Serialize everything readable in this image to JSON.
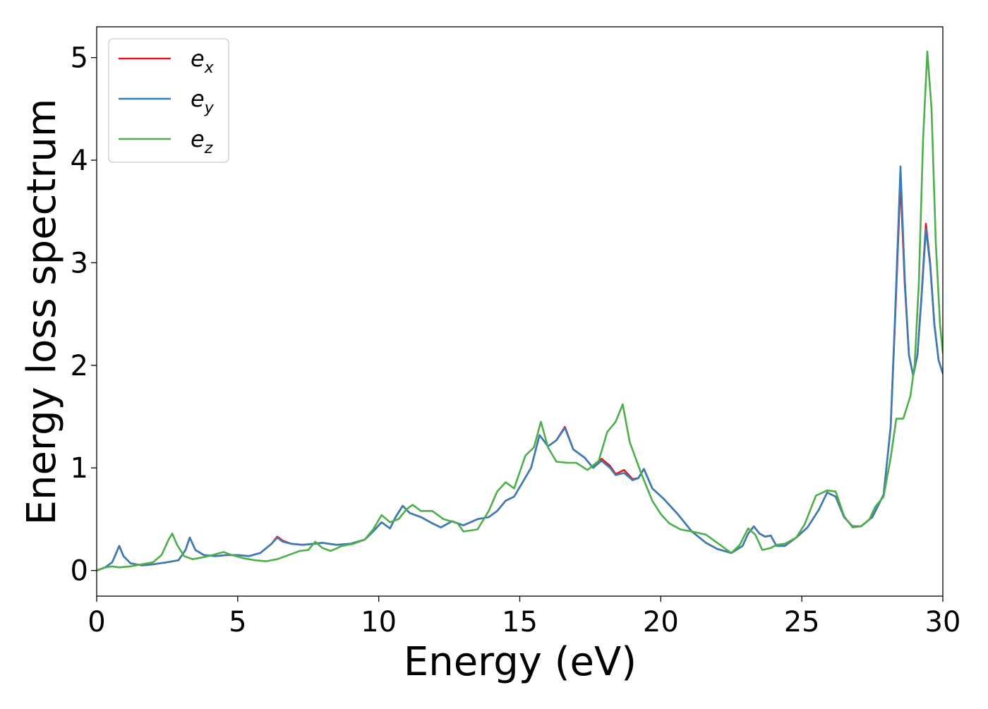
{
  "chart_data": {
    "type": "line",
    "title": "",
    "xlabel": "Energy (eV)",
    "ylabel": "Energy loss spectrum",
    "xlim": [
      0,
      30
    ],
    "ylim": [
      -0.25,
      5.3
    ],
    "xticks": [
      0,
      5,
      10,
      15,
      20,
      25,
      30
    ],
    "yticks": [
      0,
      1,
      2,
      3,
      4,
      5
    ],
    "grid": false,
    "legend": {
      "placement": "top-left",
      "entries": [
        {
          "base": "e",
          "sub": "x"
        },
        {
          "base": "e",
          "sub": "y"
        },
        {
          "base": "e",
          "sub": "z"
        }
      ]
    },
    "series": [
      {
        "name": "e_x",
        "color": "#e41a1c",
        "points": [
          [
            0,
            0.0
          ],
          [
            0.3,
            0.03
          ],
          [
            0.55,
            0.08
          ],
          [
            0.8,
            0.24
          ],
          [
            0.95,
            0.14
          ],
          [
            1.2,
            0.07
          ],
          [
            1.6,
            0.05
          ],
          [
            2.0,
            0.06
          ],
          [
            2.5,
            0.08
          ],
          [
            2.9,
            0.1
          ],
          [
            3.15,
            0.2
          ],
          [
            3.3,
            0.32
          ],
          [
            3.5,
            0.2
          ],
          [
            3.8,
            0.15
          ],
          [
            4.2,
            0.14
          ],
          [
            4.6,
            0.15
          ],
          [
            5.0,
            0.15
          ],
          [
            5.4,
            0.14
          ],
          [
            5.8,
            0.17
          ],
          [
            6.2,
            0.26
          ],
          [
            6.4,
            0.33
          ],
          [
            6.6,
            0.29
          ],
          [
            6.9,
            0.26
          ],
          [
            7.3,
            0.25
          ],
          [
            7.7,
            0.26
          ],
          [
            8.0,
            0.27
          ],
          [
            8.5,
            0.25
          ],
          [
            9.0,
            0.26
          ],
          [
            9.5,
            0.3
          ],
          [
            9.8,
            0.38
          ],
          [
            10.1,
            0.47
          ],
          [
            10.4,
            0.41
          ],
          [
            10.6,
            0.52
          ],
          [
            10.85,
            0.63
          ],
          [
            11.1,
            0.56
          ],
          [
            11.5,
            0.52
          ],
          [
            11.9,
            0.46
          ],
          [
            12.2,
            0.42
          ],
          [
            12.6,
            0.48
          ],
          [
            13.0,
            0.44
          ],
          [
            13.5,
            0.5
          ],
          [
            13.9,
            0.52
          ],
          [
            14.2,
            0.58
          ],
          [
            14.5,
            0.68
          ],
          [
            14.8,
            0.72
          ],
          [
            15.1,
            0.86
          ],
          [
            15.4,
            1.0
          ],
          [
            15.7,
            1.32
          ],
          [
            16.0,
            1.21
          ],
          [
            16.3,
            1.27
          ],
          [
            16.6,
            1.4
          ],
          [
            16.9,
            1.18
          ],
          [
            17.3,
            1.1
          ],
          [
            17.6,
            1.0
          ],
          [
            17.9,
            1.09
          ],
          [
            18.2,
            1.02
          ],
          [
            18.4,
            0.94
          ],
          [
            18.7,
            0.98
          ],
          [
            19.0,
            0.89
          ],
          [
            19.2,
            0.9
          ],
          [
            19.4,
            0.99
          ],
          [
            19.7,
            0.8
          ],
          [
            20.1,
            0.7
          ],
          [
            20.6,
            0.55
          ],
          [
            21.1,
            0.38
          ],
          [
            21.6,
            0.27
          ],
          [
            22.0,
            0.21
          ],
          [
            22.5,
            0.17
          ],
          [
            22.9,
            0.24
          ],
          [
            23.1,
            0.36
          ],
          [
            23.3,
            0.43
          ],
          [
            23.5,
            0.36
          ],
          [
            23.7,
            0.33
          ],
          [
            23.9,
            0.34
          ],
          [
            24.1,
            0.24
          ],
          [
            24.4,
            0.24
          ],
          [
            24.8,
            0.32
          ],
          [
            25.2,
            0.42
          ],
          [
            25.6,
            0.59
          ],
          [
            25.9,
            0.76
          ],
          [
            26.2,
            0.72
          ],
          [
            26.5,
            0.52
          ],
          [
            26.8,
            0.43
          ],
          [
            27.1,
            0.43
          ],
          [
            27.5,
            0.52
          ],
          [
            27.9,
            0.74
          ],
          [
            28.15,
            1.4
          ],
          [
            28.3,
            2.4
          ],
          [
            28.5,
            3.8
          ],
          [
            28.65,
            2.8
          ],
          [
            28.8,
            2.1
          ],
          [
            28.95,
            1.9
          ],
          [
            29.1,
            2.1
          ],
          [
            29.25,
            2.7
          ],
          [
            29.4,
            3.38
          ],
          [
            29.55,
            3.0
          ],
          [
            29.7,
            2.4
          ],
          [
            29.85,
            2.05
          ],
          [
            30.0,
            1.92
          ]
        ]
      },
      {
        "name": "e_y",
        "color": "#377eb8",
        "points": [
          [
            0,
            0.0
          ],
          [
            0.3,
            0.03
          ],
          [
            0.55,
            0.08
          ],
          [
            0.8,
            0.24
          ],
          [
            0.95,
            0.14
          ],
          [
            1.2,
            0.07
          ],
          [
            1.6,
            0.05
          ],
          [
            2.0,
            0.06
          ],
          [
            2.5,
            0.08
          ],
          [
            2.9,
            0.1
          ],
          [
            3.15,
            0.2
          ],
          [
            3.3,
            0.32
          ],
          [
            3.5,
            0.2
          ],
          [
            3.8,
            0.15
          ],
          [
            4.2,
            0.14
          ],
          [
            4.6,
            0.15
          ],
          [
            5.0,
            0.15
          ],
          [
            5.4,
            0.14
          ],
          [
            5.8,
            0.17
          ],
          [
            6.2,
            0.26
          ],
          [
            6.4,
            0.32
          ],
          [
            6.6,
            0.28
          ],
          [
            6.9,
            0.26
          ],
          [
            7.3,
            0.25
          ],
          [
            7.7,
            0.26
          ],
          [
            8.0,
            0.27
          ],
          [
            8.5,
            0.25
          ],
          [
            9.0,
            0.26
          ],
          [
            9.5,
            0.3
          ],
          [
            9.8,
            0.38
          ],
          [
            10.1,
            0.47
          ],
          [
            10.4,
            0.41
          ],
          [
            10.6,
            0.52
          ],
          [
            10.85,
            0.63
          ],
          [
            11.1,
            0.56
          ],
          [
            11.5,
            0.52
          ],
          [
            11.9,
            0.46
          ],
          [
            12.2,
            0.42
          ],
          [
            12.6,
            0.48
          ],
          [
            13.0,
            0.44
          ],
          [
            13.5,
            0.5
          ],
          [
            13.9,
            0.52
          ],
          [
            14.2,
            0.58
          ],
          [
            14.5,
            0.68
          ],
          [
            14.8,
            0.72
          ],
          [
            15.1,
            0.86
          ],
          [
            15.4,
            1.0
          ],
          [
            15.7,
            1.32
          ],
          [
            16.0,
            1.21
          ],
          [
            16.3,
            1.27
          ],
          [
            16.6,
            1.39
          ],
          [
            16.9,
            1.18
          ],
          [
            17.3,
            1.1
          ],
          [
            17.6,
            1.0
          ],
          [
            17.9,
            1.07
          ],
          [
            18.2,
            1.0
          ],
          [
            18.4,
            0.93
          ],
          [
            18.7,
            0.95
          ],
          [
            19.0,
            0.88
          ],
          [
            19.2,
            0.9
          ],
          [
            19.4,
            0.99
          ],
          [
            19.7,
            0.8
          ],
          [
            20.1,
            0.7
          ],
          [
            20.6,
            0.55
          ],
          [
            21.1,
            0.38
          ],
          [
            21.6,
            0.27
          ],
          [
            22.0,
            0.21
          ],
          [
            22.5,
            0.17
          ],
          [
            22.9,
            0.24
          ],
          [
            23.1,
            0.36
          ],
          [
            23.3,
            0.43
          ],
          [
            23.5,
            0.36
          ],
          [
            23.7,
            0.33
          ],
          [
            23.9,
            0.34
          ],
          [
            24.1,
            0.24
          ],
          [
            24.4,
            0.24
          ],
          [
            24.8,
            0.32
          ],
          [
            25.2,
            0.42
          ],
          [
            25.6,
            0.59
          ],
          [
            25.9,
            0.76
          ],
          [
            26.2,
            0.72
          ],
          [
            26.5,
            0.52
          ],
          [
            26.8,
            0.43
          ],
          [
            27.1,
            0.43
          ],
          [
            27.5,
            0.52
          ],
          [
            27.9,
            0.74
          ],
          [
            28.15,
            1.4
          ],
          [
            28.3,
            2.45
          ],
          [
            28.5,
            3.94
          ],
          [
            28.65,
            2.85
          ],
          [
            28.8,
            2.1
          ],
          [
            28.95,
            1.9
          ],
          [
            29.1,
            2.1
          ],
          [
            29.25,
            2.68
          ],
          [
            29.4,
            3.33
          ],
          [
            29.55,
            2.98
          ],
          [
            29.7,
            2.4
          ],
          [
            29.85,
            2.05
          ],
          [
            30.0,
            1.92
          ]
        ]
      },
      {
        "name": "e_z",
        "color": "#4daf4a",
        "points": [
          [
            0,
            0.0
          ],
          [
            0.3,
            0.03
          ],
          [
            0.55,
            0.04
          ],
          [
            0.8,
            0.03
          ],
          [
            1.2,
            0.04
          ],
          [
            1.6,
            0.06
          ],
          [
            2.0,
            0.08
          ],
          [
            2.3,
            0.15
          ],
          [
            2.55,
            0.3
          ],
          [
            2.68,
            0.36
          ],
          [
            2.85,
            0.25
          ],
          [
            3.1,
            0.14
          ],
          [
            3.4,
            0.11
          ],
          [
            3.8,
            0.13
          ],
          [
            4.1,
            0.15
          ],
          [
            4.5,
            0.18
          ],
          [
            4.8,
            0.15
          ],
          [
            5.2,
            0.12
          ],
          [
            5.6,
            0.1
          ],
          [
            6.0,
            0.09
          ],
          [
            6.4,
            0.11
          ],
          [
            6.8,
            0.15
          ],
          [
            7.2,
            0.19
          ],
          [
            7.5,
            0.2
          ],
          [
            7.75,
            0.28
          ],
          [
            8.0,
            0.22
          ],
          [
            8.3,
            0.19
          ],
          [
            8.7,
            0.24
          ],
          [
            9.1,
            0.26
          ],
          [
            9.5,
            0.3
          ],
          [
            9.8,
            0.4
          ],
          [
            10.1,
            0.54
          ],
          [
            10.4,
            0.47
          ],
          [
            10.7,
            0.5
          ],
          [
            11.0,
            0.6
          ],
          [
            11.2,
            0.64
          ],
          [
            11.5,
            0.58
          ],
          [
            11.9,
            0.58
          ],
          [
            12.3,
            0.5
          ],
          [
            12.8,
            0.46
          ],
          [
            13.0,
            0.38
          ],
          [
            13.5,
            0.4
          ],
          [
            13.9,
            0.58
          ],
          [
            14.2,
            0.77
          ],
          [
            14.5,
            0.86
          ],
          [
            14.8,
            0.8
          ],
          [
            15.2,
            1.12
          ],
          [
            15.5,
            1.2
          ],
          [
            15.75,
            1.45
          ],
          [
            16.0,
            1.2
          ],
          [
            16.3,
            1.06
          ],
          [
            16.7,
            1.05
          ],
          [
            17.0,
            1.05
          ],
          [
            17.4,
            0.98
          ],
          [
            17.8,
            1.07
          ],
          [
            18.1,
            1.35
          ],
          [
            18.4,
            1.45
          ],
          [
            18.65,
            1.62
          ],
          [
            18.9,
            1.25
          ],
          [
            19.3,
            0.95
          ],
          [
            19.7,
            0.68
          ],
          [
            20.0,
            0.55
          ],
          [
            20.3,
            0.46
          ],
          [
            20.7,
            0.4
          ],
          [
            21.1,
            0.38
          ],
          [
            21.6,
            0.35
          ],
          [
            22.0,
            0.27
          ],
          [
            22.5,
            0.17
          ],
          [
            22.8,
            0.25
          ],
          [
            23.1,
            0.41
          ],
          [
            23.35,
            0.35
          ],
          [
            23.6,
            0.2
          ],
          [
            23.9,
            0.22
          ],
          [
            24.1,
            0.25
          ],
          [
            24.4,
            0.26
          ],
          [
            24.8,
            0.32
          ],
          [
            25.1,
            0.45
          ],
          [
            25.5,
            0.73
          ],
          [
            25.9,
            0.78
          ],
          [
            26.2,
            0.77
          ],
          [
            26.5,
            0.53
          ],
          [
            26.8,
            0.42
          ],
          [
            27.1,
            0.43
          ],
          [
            27.4,
            0.5
          ],
          [
            27.6,
            0.62
          ],
          [
            27.9,
            0.72
          ],
          [
            28.15,
            1.1
          ],
          [
            28.35,
            1.48
          ],
          [
            28.6,
            1.48
          ],
          [
            28.85,
            1.7
          ],
          [
            29.0,
            2.0
          ],
          [
            29.15,
            2.8
          ],
          [
            29.3,
            4.2
          ],
          [
            29.45,
            5.06
          ],
          [
            29.6,
            4.5
          ],
          [
            29.75,
            3.2
          ],
          [
            29.9,
            2.4
          ],
          [
            30.0,
            2.12
          ]
        ]
      }
    ]
  }
}
